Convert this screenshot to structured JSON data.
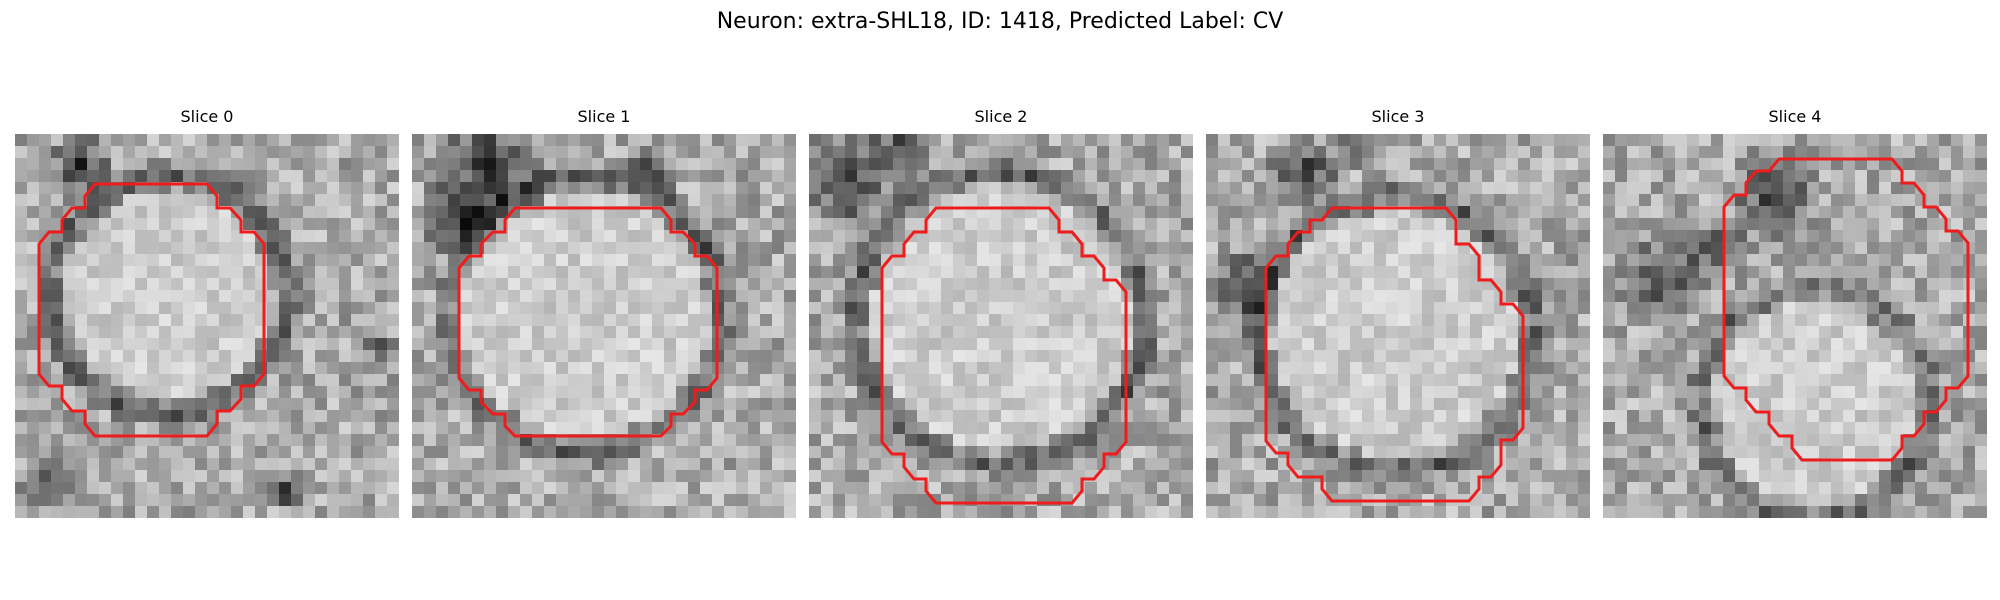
{
  "figure": {
    "title": "Neuron: extra-SHL18, ID: 1418, Predicted Label: CV"
  },
  "panels": [
    {
      "title": "Slice 0"
    },
    {
      "title": "Slice 1"
    },
    {
      "title": "Slice 2"
    },
    {
      "title": "Slice 3"
    },
    {
      "title": "Slice 4"
    }
  ],
  "colors": {
    "contour": "#ee1c1c"
  }
}
